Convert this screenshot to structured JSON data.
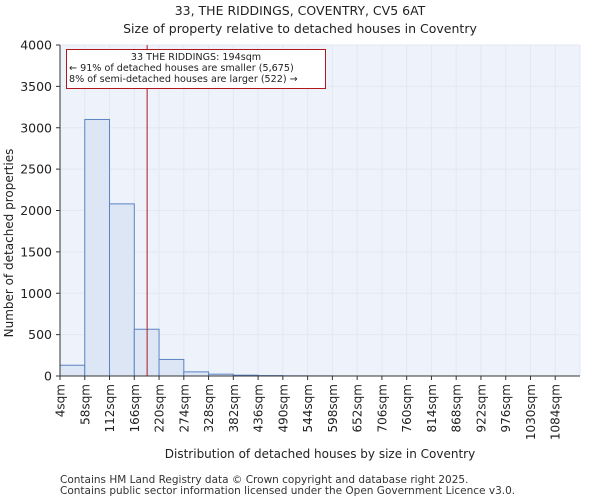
{
  "colors": {
    "bar_fill": "#dde6f5",
    "bar_stroke": "#5b84c4",
    "marker": "#b0171f",
    "grid": "#e2e8f4"
  },
  "chart_data": {
    "type": "bar",
    "title": "33, THE RIDDINGS, COVENTRY, CV5 6AT",
    "subtitle": "Size of property relative to detached houses in Coventry",
    "xlabel": "Distribution of detached houses by size in Coventry",
    "ylabel": "Number of detached properties",
    "ylim": [
      0,
      4000
    ],
    "yticks": [
      0,
      500,
      1000,
      1500,
      2000,
      2500,
      3000,
      3500,
      4000
    ],
    "categories": [
      "4sqm",
      "58sqm",
      "112sqm",
      "166sqm",
      "220sqm",
      "274sqm",
      "328sqm",
      "382sqm",
      "436sqm",
      "490sqm",
      "544sqm",
      "598sqm",
      "652sqm",
      "706sqm",
      "760sqm",
      "814sqm",
      "868sqm",
      "922sqm",
      "976sqm",
      "1030sqm",
      "1084sqm"
    ],
    "values": [
      130,
      3100,
      2080,
      565,
      200,
      50,
      22,
      10,
      5,
      2,
      1,
      0,
      0,
      0,
      0,
      0,
      0,
      0,
      0,
      0,
      0
    ],
    "marker": {
      "value_sqm": 194,
      "label": "33 THE RIDDINGS: 194sqm"
    },
    "annotation": {
      "line1": "33 THE RIDDINGS: 194sqm",
      "line2": "← 91% of detached houses are smaller (5,675)",
      "line3": "8% of semi-detached houses are larger (522) →"
    }
  },
  "footer": {
    "line1": "Contains HM Land Registry data © Crown copyright and database right 2025.",
    "line2": "Contains public sector information licensed under the Open Government Licence v3.0."
  }
}
